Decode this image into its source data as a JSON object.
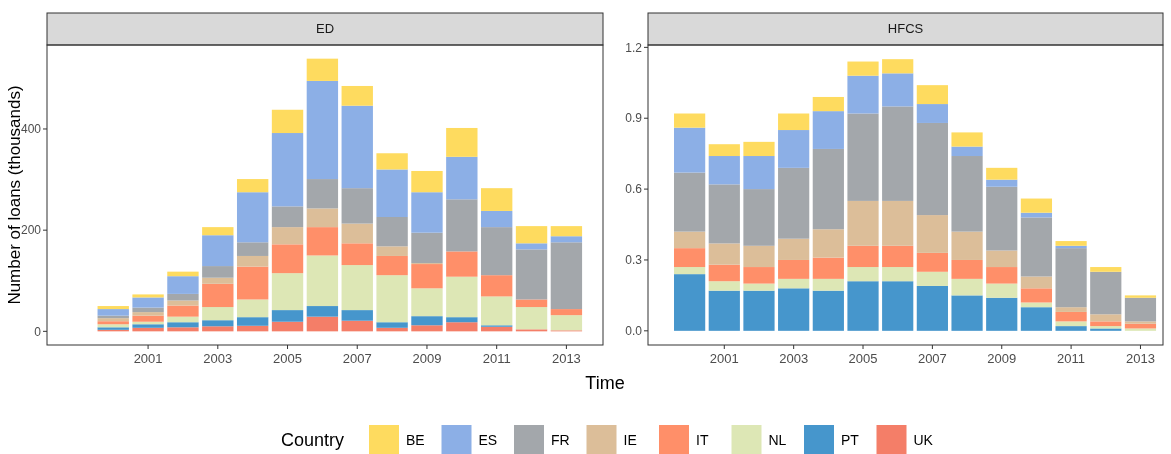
{
  "chart_data": [
    {
      "type": "bar",
      "title": "ED",
      "ylabel": "Number of loans (thousands)",
      "xlabel": "Time",
      "legend_title": "Country",
      "legend": "bottom",
      "stacked": true,
      "grid": false,
      "x": [
        2000,
        2001,
        2002,
        2003,
        2004,
        2005,
        2006,
        2007,
        2008,
        2009,
        2010,
        2011,
        2012,
        2013
      ],
      "xlim": [
        1998.1,
        2014.05
      ],
      "xticks": [
        2001,
        2003,
        2005,
        2007,
        2009,
        2011,
        2013
      ],
      "ylim": [
        -27,
        566
      ],
      "yticks": [
        0,
        200,
        400
      ],
      "series": [
        {
          "name": "UK",
          "color": "#f47e68",
          "values": [
            3,
            7,
            8,
            10,
            11,
            19,
            29,
            21,
            7,
            12,
            18,
            9,
            4,
            2
          ]
        },
        {
          "name": "PT",
          "color": "#4696cc",
          "values": [
            5,
            7,
            10,
            12,
            17,
            23,
            21,
            21,
            11,
            18,
            10,
            3,
            null,
            null
          ]
        },
        {
          "name": "NL",
          "color": "#dde7b5",
          "values": [
            6,
            5,
            11,
            26,
            35,
            73,
            100,
            89,
            93,
            55,
            80,
            57,
            44,
            30
          ]
        },
        {
          "name": "IT",
          "color": "#ff8f69",
          "values": [
            6,
            12,
            22,
            46,
            65,
            57,
            56,
            43,
            38,
            48,
            50,
            42,
            15,
            12
          ]
        },
        {
          "name": "IE",
          "color": "#dcbe99",
          "values": [
            6,
            7,
            10,
            12,
            21,
            34,
            37,
            39,
            19,
            2,
            null,
            null,
            null,
            null
          ]
        },
        {
          "name": "FR",
          "color": "#a3a7ab",
          "values": [
            5,
            9,
            13,
            23,
            27,
            41,
            58,
            70,
            58,
            60,
            103,
            95,
            99,
            132
          ]
        },
        {
          "name": "ES",
          "color": "#8cafe6",
          "values": [
            13,
            20,
            35,
            61,
            99,
            145,
            194,
            163,
            94,
            80,
            84,
            32,
            12,
            12
          ]
        },
        {
          "name": "BE",
          "color": "#fedb5f",
          "values": [
            6,
            6,
            9,
            16,
            26,
            46,
            44,
            39,
            32,
            42,
            57,
            45,
            34,
            20
          ]
        }
      ]
    },
    {
      "type": "bar",
      "title": "HFCS",
      "stacked": true,
      "grid": false,
      "x": [
        2000,
        2001,
        2002,
        2003,
        2004,
        2005,
        2006,
        2007,
        2008,
        2009,
        2010,
        2011,
        2012,
        2013
      ],
      "xlim": [
        1998.8,
        2013.65
      ],
      "xticks": [
        2001,
        2003,
        2005,
        2007,
        2009,
        2011,
        2013
      ],
      "ylim": [
        -0.06,
        1.21
      ],
      "yticks": [
        {
          "value": 0,
          "label": "0.0"
        },
        {
          "value": 0.3,
          "label": "0.3"
        },
        {
          "value": 0.6,
          "label": "0.6"
        },
        {
          "value": 0.9,
          "label": "0.9"
        },
        {
          "value": 1.2,
          "label": "1.2"
        }
      ],
      "series": [
        {
          "name": "PT",
          "color": "#4696cc",
          "values": [
            0.24,
            0.17,
            0.17,
            0.18,
            0.17,
            0.21,
            0.21,
            0.19,
            0.15,
            0.14,
            0.1,
            0.02,
            0.01,
            null
          ]
        },
        {
          "name": "NL",
          "color": "#dde7b5",
          "values": [
            0.03,
            0.04,
            0.03,
            0.04,
            0.05,
            0.06,
            0.06,
            0.06,
            0.07,
            0.06,
            0.02,
            0.02,
            0.01,
            0.01
          ]
        },
        {
          "name": "IT",
          "color": "#ff8f69",
          "values": [
            0.08,
            0.07,
            0.07,
            0.08,
            0.09,
            0.09,
            0.09,
            0.08,
            0.08,
            0.07,
            0.06,
            0.04,
            0.02,
            0.02
          ]
        },
        {
          "name": "IE",
          "color": "#dcbe99",
          "values": [
            0.07,
            0.09,
            0.09,
            0.09,
            0.12,
            0.19,
            0.19,
            0.16,
            0.12,
            0.07,
            0.05,
            0.02,
            0.03,
            0.01
          ]
        },
        {
          "name": "FR",
          "color": "#a3a7ab",
          "values": [
            0.25,
            0.25,
            0.24,
            0.3,
            0.34,
            0.37,
            0.4,
            0.39,
            0.32,
            0.27,
            0.25,
            0.25,
            0.18,
            0.1
          ]
        },
        {
          "name": "ES",
          "color": "#8cafe6",
          "values": [
            0.19,
            0.12,
            0.14,
            0.16,
            0.16,
            0.16,
            0.14,
            0.08,
            0.04,
            0.03,
            0.02,
            0.01,
            null,
            null
          ]
        },
        {
          "name": "BE",
          "color": "#fedb5f",
          "values": [
            0.06,
            0.05,
            0.06,
            0.07,
            0.06,
            0.06,
            0.06,
            0.08,
            0.06,
            0.05,
            0.06,
            0.02,
            0.02,
            0.01
          ]
        }
      ]
    }
  ]
}
